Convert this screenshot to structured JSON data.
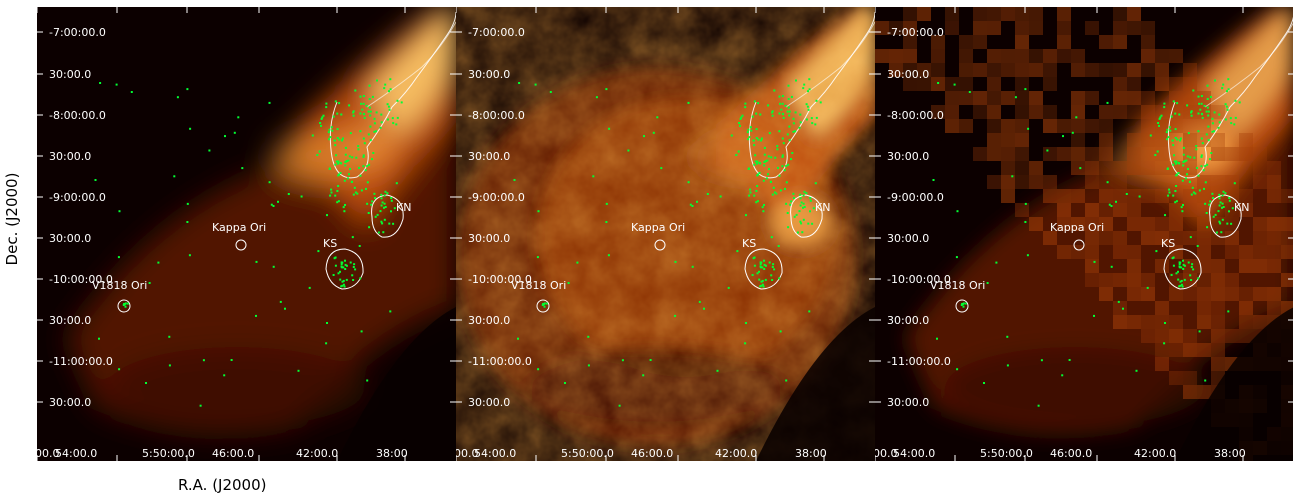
{
  "figure": {
    "y_axis_label": "Dec.  (J2000)",
    "x_axis_label": "R.A. (J2000)",
    "dec_ticks": [
      "-7:00:00.0",
      "30:00.0",
      "-8:00:00.0",
      "30:00.0",
      "-9:00:00.0",
      "30:00.0",
      "-10:00:00.0",
      "30:00.0",
      "-11:00:00.0",
      "30:00.0"
    ],
    "ra_ticks": [
      "00.0",
      "54:00.0",
      "5:50:00.0",
      "46:00.0",
      "42:00.0",
      "38:00"
    ],
    "annotations": {
      "kappa_ori": "Kappa Ori",
      "v1818_ori": "V1818 Ori",
      "ks": "KS",
      "kn": "KN"
    },
    "colors": {
      "background_dark": "#0c0000",
      "emission_mid": "#8a2a00",
      "emission_bright": "#ffd070",
      "stars": "#00ff33",
      "contours": "#ffffff"
    },
    "panels": [
      {
        "id": "panel-1",
        "style": "smooth"
      },
      {
        "id": "panel-2",
        "style": "filamentary"
      },
      {
        "id": "panel-3",
        "style": "pixelated"
      }
    ]
  }
}
